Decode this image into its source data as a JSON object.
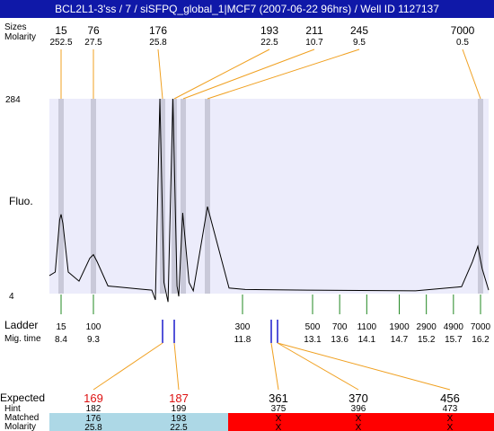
{
  "title": "BCL2L1-3'ss / 7 / siSFPQ_global_1|MCF7 (2007-06-22 96hrs) / Well ID 1127137",
  "labels": {
    "sizes": "Sizes",
    "molarity": "Molarity",
    "fluo": "Fluo.",
    "ladder": "Ladder",
    "mig_time": "Mig. time",
    "expected": "Expected",
    "hint": "Hint",
    "matched": "Matched",
    "molarity_bottom": "Molarity",
    "y_max": "284",
    "y_min": "4"
  },
  "top_peaks": [
    {
      "size": "15",
      "molarity": "252.5"
    },
    {
      "size": "76",
      "molarity": "27.5"
    },
    {
      "size": "176",
      "molarity": "25.8"
    },
    {
      "size": "193",
      "molarity": "22.5"
    },
    {
      "size": "211",
      "molarity": "10.7"
    },
    {
      "size": "245",
      "molarity": "9.5"
    },
    {
      "size": "7000",
      "molarity": "0.5"
    }
  ],
  "ladder": [
    {
      "size": "15",
      "time": "8.4"
    },
    {
      "size": "100",
      "time": "9.3"
    },
    {
      "size": "300",
      "time": "11.8"
    },
    {
      "size": "500",
      "time": "13.1"
    },
    {
      "size": "700",
      "time": "13.6"
    },
    {
      "size": "1100",
      "time": "14.1"
    },
    {
      "size": "1900",
      "time": "14.7"
    },
    {
      "size": "2900",
      "time": "15.2"
    },
    {
      "size": "4900",
      "time": "15.7"
    },
    {
      "size": "7000",
      "time": "16.2"
    }
  ],
  "expected": [
    {
      "expected": "169",
      "hint": "182",
      "matched": "176",
      "molarity": "25.8",
      "status": "matched"
    },
    {
      "expected": "187",
      "hint": "199",
      "matched": "193",
      "molarity": "22.5",
      "status": "matched"
    },
    {
      "expected": "361",
      "hint": "375",
      "matched": "X",
      "molarity": "X",
      "status": "missing"
    },
    {
      "expected": "370",
      "hint": "396",
      "matched": "X",
      "molarity": "X",
      "status": "missing"
    },
    {
      "expected": "456",
      "hint": "473",
      "matched": "X",
      "molarity": "X",
      "status": "missing"
    }
  ],
  "colors": {
    "plot_bg": "#ececfb",
    "band": "#c9c9d9",
    "gold": "#f0a020",
    "green": "#228822",
    "blue": "#1a1acc",
    "matched_fill": "#add8e6",
    "missing_fill": "#ff0000",
    "expected_red": "#dd1111"
  },
  "chart_data": {
    "type": "line",
    "title": "BCL2L1-3'ss / 7 / siSFPQ_global_1|MCF7 (2007-06-22 96hrs) / Well ID 1127137",
    "ylabel": "Fluo.",
    "xlabel": "",
    "ylim": [
      4,
      284
    ],
    "x_unit": "Mig. time",
    "trace": [
      [
        8.0,
        30
      ],
      [
        8.2,
        35
      ],
      [
        8.35,
        110
      ],
      [
        8.4,
        118
      ],
      [
        8.45,
        105
      ],
      [
        8.6,
        35
      ],
      [
        8.9,
        22
      ],
      [
        9.2,
        55
      ],
      [
        9.3,
        60
      ],
      [
        9.4,
        50
      ],
      [
        9.7,
        15
      ],
      [
        10.5,
        11
      ],
      [
        10.9,
        9
      ],
      [
        10.97,
        -5
      ],
      [
        11.02,
        284
      ],
      [
        11.07,
        20
      ],
      [
        11.13,
        -8
      ],
      [
        11.2,
        284
      ],
      [
        11.27,
        15
      ],
      [
        11.3,
        0
      ],
      [
        11.37,
        120
      ],
      [
        11.45,
        20
      ],
      [
        11.5,
        8
      ],
      [
        11.67,
        129
      ],
      [
        11.75,
        12
      ],
      [
        11.85,
        10
      ],
      [
        13.0,
        9
      ],
      [
        15.0,
        8
      ],
      [
        15.85,
        14
      ],
      [
        16.05,
        50
      ],
      [
        16.15,
        72
      ],
      [
        16.25,
        40
      ],
      [
        16.45,
        9
      ]
    ],
    "peaks": [
      {
        "time": 8.4,
        "size": 15,
        "molarity": 252.5
      },
      {
        "time": 9.3,
        "size": 76,
        "molarity": 27.5
      },
      {
        "time": 11.05,
        "size": 176,
        "molarity": 25.8
      },
      {
        "time": 11.22,
        "size": 193,
        "molarity": 22.5
      },
      {
        "time": 11.38,
        "size": 211,
        "molarity": 10.7
      },
      {
        "time": 11.67,
        "size": 245,
        "molarity": 9.5
      },
      {
        "time": 16.2,
        "size": 7000,
        "molarity": 0.5
      }
    ],
    "ladder_times": [
      8.4,
      9.3,
      11.8,
      13.1,
      13.6,
      14.1,
      14.7,
      15.2,
      15.7,
      16.2
    ],
    "ladder_sizes": [
      15,
      100,
      300,
      500,
      700,
      1100,
      1900,
      2900,
      4900,
      7000
    ]
  }
}
